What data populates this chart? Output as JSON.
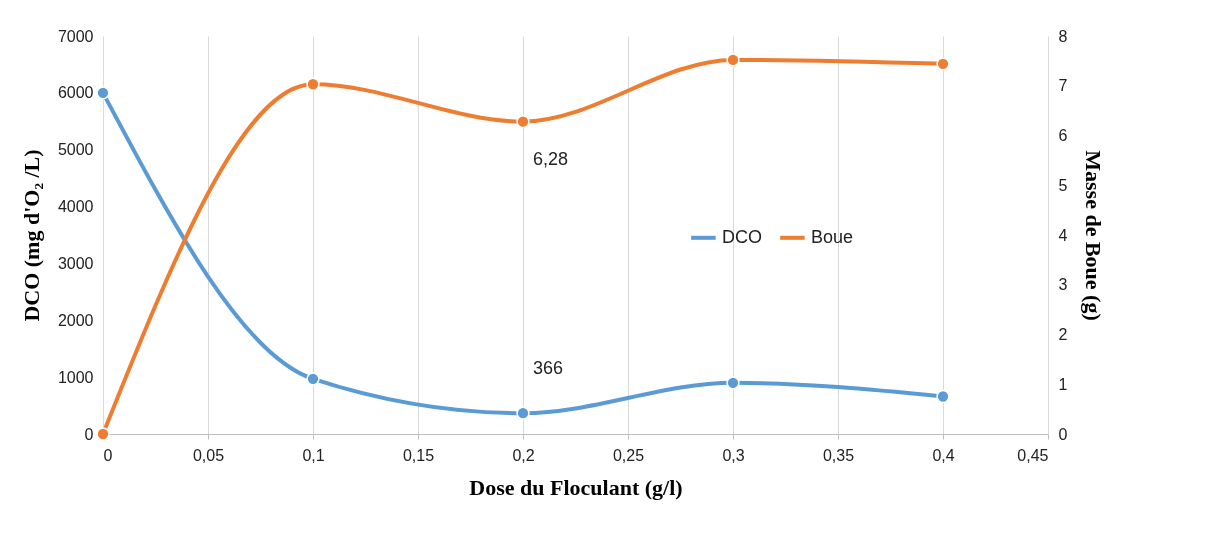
{
  "chart_data": {
    "type": "line",
    "xlabel": "Dose du Floculant (g/l)",
    "ylabel": "DCO (mg d'O₂ /L)",
    "y2label": "Masse de Boue (g)",
    "x": [
      0,
      0.1,
      0.2,
      0.3,
      0.4
    ],
    "series": [
      {
        "name": "DCO",
        "color": "#5b9bd5",
        "values": [
          6000,
          970,
          366,
          900,
          660
        ],
        "value_labels": [
          null,
          null,
          "366",
          null,
          null
        ]
      },
      {
        "name": "Boue",
        "color": "#ed7d31",
        "axis": "y2",
        "values": [
          0,
          7.03,
          6.28,
          7.52,
          7.44
        ],
        "value_labels": [
          null,
          null,
          "6,28",
          null,
          null
        ]
      }
    ],
    "xlim": [
      0,
      0.45
    ],
    "xticks": [
      0,
      {
        "value": 0.05,
        "label": "0,05"
      },
      {
        "value": 0.1,
        "label": "0,1"
      },
      {
        "value": 0.15,
        "label": "0,15"
      },
      {
        "value": 0.2,
        "label": "0,2"
      },
      {
        "value": 0.25,
        "label": "0,25"
      },
      {
        "value": 0.3,
        "label": "0,3"
      },
      {
        "value": 0.35,
        "label": "0,35"
      },
      {
        "value": 0.4,
        "label": "0,4"
      },
      {
        "value": 0.45,
        "label": "0,45"
      }
    ],
    "ylim": [
      0,
      7000
    ],
    "yticks": [
      0,
      1000,
      2000,
      3000,
      4000,
      5000,
      6000,
      7000
    ],
    "y2lim": [
      0,
      8
    ],
    "y2ticks": [
      0,
      1,
      2,
      3,
      4,
      5,
      6,
      7,
      8
    ],
    "grid": "x",
    "legend": "right",
    "marker": "circle",
    "line_style": "solid"
  }
}
